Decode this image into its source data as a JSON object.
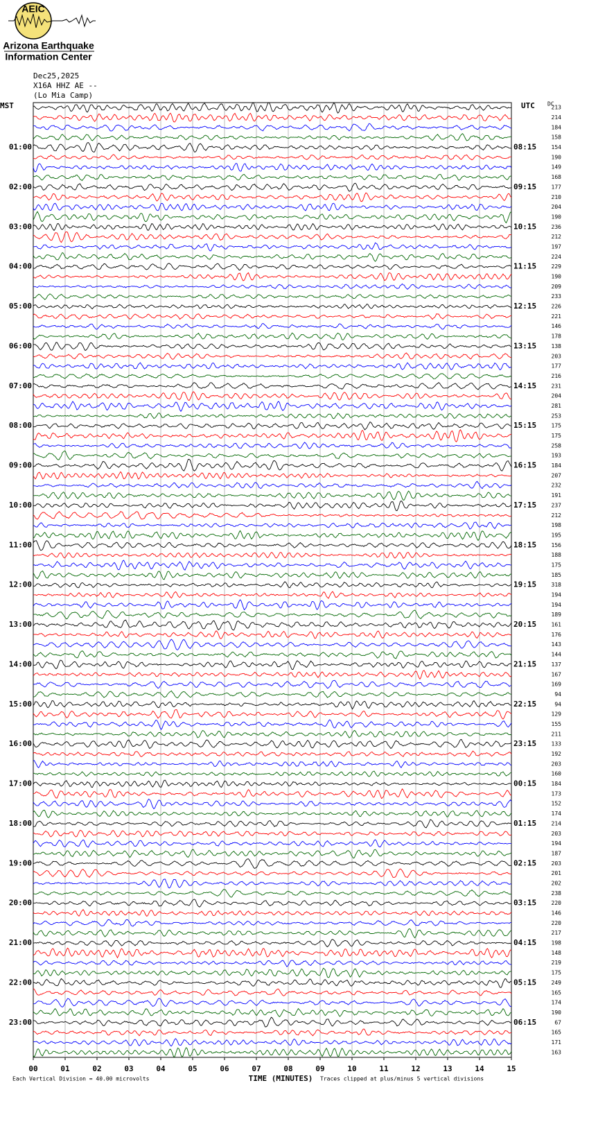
{
  "header": {
    "logo_text": "AEIC",
    "org_line1": "Arizona Earthquake",
    "org_line2": "Information Center",
    "date": "Dec25,2025",
    "station": "X16A HHZ AE --",
    "site": "(Lo Mia Camp)"
  },
  "left_axis": {
    "title": "MST",
    "labels": [
      "01:00",
      "02:00",
      "03:00",
      "04:00",
      "05:00",
      "06:00",
      "07:00",
      "08:00",
      "09:00",
      "10:00",
      "11:00",
      "12:00",
      "13:00",
      "14:00",
      "15:00",
      "16:00",
      "17:00",
      "18:00",
      "19:00",
      "20:00",
      "21:00",
      "22:00",
      "23:00"
    ]
  },
  "right_axis": {
    "title": "UTC",
    "labels": [
      "08:15",
      "09:15",
      "10:15",
      "11:15",
      "12:15",
      "13:15",
      "14:15",
      "15:15",
      "16:15",
      "17:15",
      "18:15",
      "19:15",
      "20:15",
      "21:15",
      "22:15",
      "23:15",
      "00:15",
      "01:15",
      "02:15",
      "03:15",
      "04:15",
      "05:15",
      "06:15"
    ]
  },
  "dc": {
    "title": "DC",
    "values": [
      213,
      214,
      184,
      158,
      154,
      190,
      149,
      168,
      177,
      210,
      204,
      190,
      236,
      212,
      197,
      224,
      229,
      190,
      209,
      233,
      226,
      221,
      146,
      178,
      138,
      203,
      177,
      216,
      231,
      204,
      281,
      253,
      175,
      175,
      258,
      193,
      184,
      207,
      232,
      191,
      237,
      212,
      198,
      195,
      156,
      188,
      175,
      185,
      318,
      194,
      194,
      189,
      161,
      176,
      143,
      144,
      137,
      167,
      169,
      94,
      94,
      129,
      155,
      211,
      133,
      192,
      203,
      160,
      184,
      173,
      152,
      174,
      214,
      203,
      194,
      187,
      203,
      201,
      202,
      238,
      220,
      146,
      220,
      217,
      198,
      148,
      219,
      175,
      249,
      165,
      174,
      190,
      67,
      165,
      171,
      163
    ]
  },
  "x_axis": {
    "ticks": [
      "00",
      "01",
      "02",
      "03",
      "04",
      "05",
      "06",
      "07",
      "08",
      "09",
      "10",
      "11",
      "12",
      "13",
      "14",
      "15"
    ],
    "title": "TIME (MINUTES)"
  },
  "footer": {
    "scale": "Each Vertical Division =   40.00 microvolts",
    "clip": "Traces clipped at plus/minus 5 vertical divisions"
  },
  "trace_colors": [
    "#000000",
    "#ff0000",
    "#0000ff",
    "#006600"
  ]
}
